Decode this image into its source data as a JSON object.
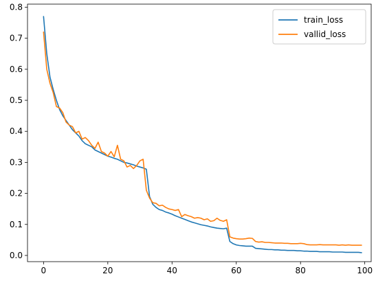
{
  "chart_data": {
    "type": "line",
    "title": "",
    "xlabel": "",
    "ylabel": "",
    "xlim": [
      -5,
      102
    ],
    "ylim": [
      -0.02,
      0.81
    ],
    "x_ticks": [
      0,
      20,
      40,
      60,
      80,
      100
    ],
    "y_ticks": [
      0.0,
      0.1,
      0.2,
      0.3,
      0.4,
      0.5,
      0.6,
      0.7,
      0.8
    ],
    "grid": false,
    "legend_position": "top-right",
    "series": [
      {
        "name": "train_loss",
        "color": "#1f77b4",
        "x": [
          0,
          1,
          2,
          3,
          4,
          5,
          6,
          7,
          8,
          9,
          10,
          11,
          12,
          13,
          14,
          15,
          16,
          17,
          18,
          19,
          20,
          21,
          22,
          23,
          24,
          25,
          26,
          27,
          28,
          29,
          30,
          31,
          32,
          33,
          34,
          35,
          36,
          37,
          38,
          39,
          40,
          41,
          42,
          43,
          44,
          45,
          46,
          47,
          48,
          49,
          50,
          51,
          52,
          53,
          54,
          55,
          56,
          57,
          58,
          59,
          60,
          61,
          62,
          63,
          64,
          65,
          66,
          67,
          68,
          69,
          70,
          71,
          72,
          73,
          74,
          75,
          76,
          77,
          78,
          79,
          80,
          81,
          82,
          83,
          84,
          85,
          86,
          87,
          88,
          89,
          90,
          91,
          92,
          93,
          94,
          95,
          96,
          97,
          98,
          99
        ],
        "y": [
          0.77,
          0.65,
          0.575,
          0.535,
          0.5,
          0.47,
          0.45,
          0.435,
          0.42,
          0.405,
          0.395,
          0.385,
          0.37,
          0.36,
          0.355,
          0.35,
          0.34,
          0.335,
          0.33,
          0.325,
          0.32,
          0.317,
          0.313,
          0.31,
          0.305,
          0.3,
          0.298,
          0.295,
          0.292,
          0.288,
          0.285,
          0.282,
          0.278,
          0.19,
          0.165,
          0.155,
          0.148,
          0.145,
          0.14,
          0.137,
          0.133,
          0.128,
          0.124,
          0.12,
          0.116,
          0.112,
          0.108,
          0.105,
          0.102,
          0.099,
          0.097,
          0.095,
          0.092,
          0.09,
          0.088,
          0.087,
          0.086,
          0.088,
          0.045,
          0.038,
          0.034,
          0.032,
          0.031,
          0.03,
          0.03,
          0.03,
          0.023,
          0.022,
          0.021,
          0.02,
          0.019,
          0.019,
          0.018,
          0.018,
          0.017,
          0.017,
          0.016,
          0.016,
          0.016,
          0.015,
          0.015,
          0.014,
          0.014,
          0.013,
          0.013,
          0.013,
          0.012,
          0.012,
          0.012,
          0.012,
          0.011,
          0.011,
          0.011,
          0.011,
          0.01,
          0.01,
          0.01,
          0.01,
          0.01,
          0.009
        ]
      },
      {
        "name": "vallid_loss",
        "color": "#ff7f0e",
        "x": [
          0,
          1,
          2,
          3,
          4,
          5,
          6,
          7,
          8,
          9,
          10,
          11,
          12,
          13,
          14,
          15,
          16,
          17,
          18,
          19,
          20,
          21,
          22,
          23,
          24,
          25,
          26,
          27,
          28,
          29,
          30,
          31,
          32,
          33,
          34,
          35,
          36,
          37,
          38,
          39,
          40,
          41,
          42,
          43,
          44,
          45,
          46,
          47,
          48,
          49,
          50,
          51,
          52,
          53,
          54,
          55,
          56,
          57,
          58,
          59,
          60,
          61,
          62,
          63,
          64,
          65,
          66,
          67,
          68,
          69,
          70,
          71,
          72,
          73,
          74,
          75,
          76,
          77,
          78,
          79,
          80,
          81,
          82,
          83,
          84,
          85,
          86,
          87,
          88,
          89,
          90,
          91,
          92,
          93,
          94,
          95,
          96,
          97,
          98,
          99
        ],
        "y": [
          0.72,
          0.6,
          0.555,
          0.525,
          0.48,
          0.475,
          0.46,
          0.43,
          0.42,
          0.415,
          0.395,
          0.4,
          0.375,
          0.38,
          0.37,
          0.355,
          0.345,
          0.365,
          0.335,
          0.33,
          0.32,
          0.335,
          0.318,
          0.355,
          0.31,
          0.305,
          0.285,
          0.29,
          0.28,
          0.29,
          0.305,
          0.31,
          0.21,
          0.185,
          0.17,
          0.168,
          0.16,
          0.162,
          0.155,
          0.15,
          0.148,
          0.145,
          0.148,
          0.125,
          0.132,
          0.128,
          0.125,
          0.12,
          0.122,
          0.12,
          0.115,
          0.118,
          0.11,
          0.112,
          0.12,
          0.113,
          0.11,
          0.115,
          0.06,
          0.056,
          0.054,
          0.053,
          0.053,
          0.054,
          0.056,
          0.055,
          0.045,
          0.043,
          0.044,
          0.042,
          0.042,
          0.041,
          0.04,
          0.04,
          0.04,
          0.039,
          0.039,
          0.038,
          0.038,
          0.038,
          0.039,
          0.038,
          0.035,
          0.034,
          0.034,
          0.034,
          0.035,
          0.034,
          0.034,
          0.034,
          0.034,
          0.034,
          0.033,
          0.034,
          0.033,
          0.034,
          0.033,
          0.033,
          0.033,
          0.033
        ]
      }
    ]
  }
}
